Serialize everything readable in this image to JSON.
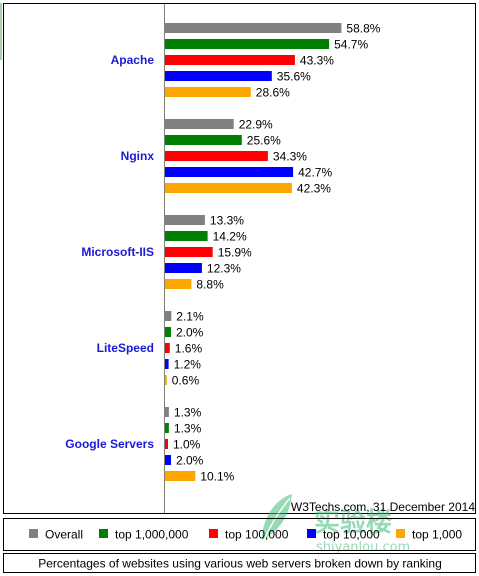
{
  "chart_data": {
    "type": "bar",
    "orientation": "horizontal",
    "categories": [
      "Apache",
      "Nginx",
      "Microsoft-IIS",
      "LiteSpeed",
      "Google Servers"
    ],
    "series": [
      {
        "name": "Overall",
        "color": "#808080",
        "values": [
          58.8,
          22.9,
          13.3,
          2.1,
          1.3
        ]
      },
      {
        "name": "top 1,000,000",
        "color": "#008000",
        "values": [
          54.7,
          25.6,
          14.2,
          2.0,
          1.3
        ]
      },
      {
        "name": "top 100,000",
        "color": "#ff0000",
        "values": [
          43.3,
          34.3,
          15.9,
          1.6,
          1.0
        ]
      },
      {
        "name": "top 10,000",
        "color": "#0000ff",
        "values": [
          35.6,
          42.7,
          12.3,
          1.2,
          2.0
        ]
      },
      {
        "name": "top 1,000",
        "color": "#ffa500",
        "values": [
          28.6,
          42.3,
          8.8,
          0.6,
          10.1
        ]
      }
    ],
    "value_suffix": "%",
    "xlim": [
      0,
      100
    ],
    "grid": false,
    "legend_placement": "bottom",
    "category_label_color": "#1b1bd6"
  },
  "credit": "W3Techs.com, 31 December 2014",
  "caption": "Percentages of websites using various web servers broken down by ranking",
  "watermark": {
    "text_cn": "实验楼",
    "text_en": "shiyanlou.com"
  }
}
